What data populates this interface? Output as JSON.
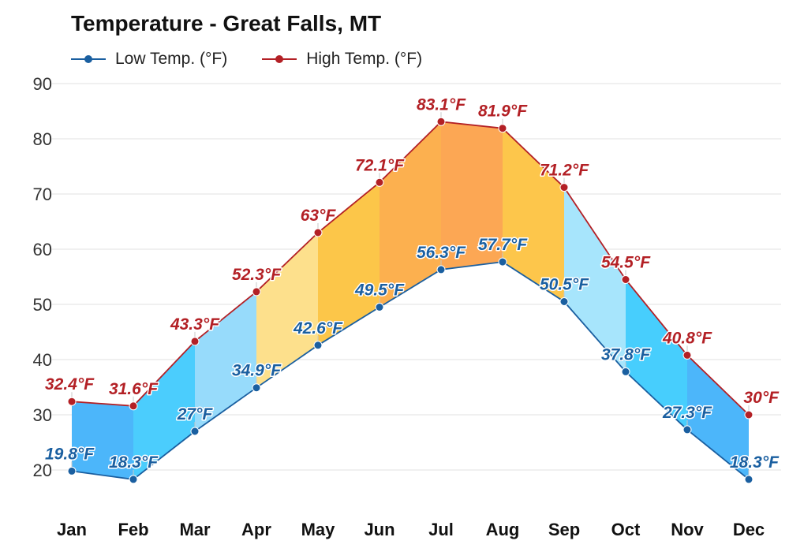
{
  "chart_data": {
    "type": "area",
    "title": "Temperature - Great Falls, MT",
    "categories": [
      "Jan",
      "Feb",
      "Mar",
      "Apr",
      "May",
      "Jun",
      "Jul",
      "Aug",
      "Sep",
      "Oct",
      "Nov",
      "Dec"
    ],
    "series": [
      {
        "name": "Low Temp. (°F)",
        "color": "#1a5fa0",
        "labels": [
          "19.8°F",
          "18.3°F",
          "27°F",
          "34.9°F",
          "42.6°F",
          "49.5°F",
          "56.3°F",
          "57.7°F",
          "50.5°F",
          "37.8°F",
          "27.3°F",
          "18.3°F"
        ],
        "values": [
          19.8,
          18.3,
          27,
          34.9,
          42.6,
          49.5,
          56.3,
          57.7,
          50.5,
          37.8,
          27.3,
          18.3
        ]
      },
      {
        "name": "High Temp. (°F)",
        "color": "#b32025",
        "labels": [
          "32.4°F",
          "31.6°F",
          "43.3°F",
          "52.3°F",
          "63°F",
          "72.1°F",
          "83.1°F",
          "81.9°F",
          "71.2°F",
          "54.5°F",
          "40.8°F",
          "30°F"
        ],
        "values": [
          32.4,
          31.6,
          43.3,
          52.3,
          63,
          72.1,
          83.1,
          81.9,
          71.2,
          54.5,
          40.8,
          30
        ]
      }
    ],
    "band_colors": [
      "#4cb6fa",
      "#4bcdfd",
      "#97dbfb",
      "#fde08c",
      "#fcc649",
      "#fcb04f",
      "#fca754",
      "#fdc64b",
      "#a7e5fc",
      "#47cefd",
      "#4cb6fa",
      "#4fa7f7"
    ],
    "ylim": [
      15,
      90
    ],
    "yticks": [
      20,
      30,
      40,
      50,
      60,
      70,
      80,
      90
    ],
    "grid": true,
    "legend_position": "top-left",
    "xlabel": "",
    "ylabel": ""
  }
}
